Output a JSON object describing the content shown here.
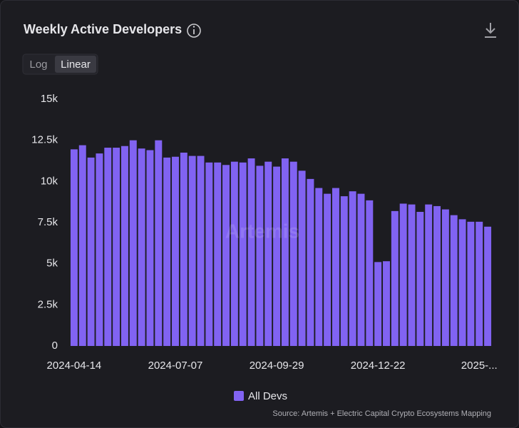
{
  "chart_data": {
    "type": "bar",
    "title": "Weekly Active Developers",
    "scale_options": [
      "Log",
      "Linear"
    ],
    "log_scale": false,
    "watermark": "Artemis",
    "source": "Source: Artemis + Electric Capital Crypto Ecosystems Mapping",
    "categories": [
      "2024-04-14",
      null,
      null,
      null,
      null,
      null,
      null,
      null,
      null,
      null,
      null,
      null,
      "2024-07-07",
      null,
      null,
      null,
      null,
      null,
      null,
      null,
      null,
      null,
      null,
      null,
      "2024-09-29",
      null,
      null,
      null,
      null,
      null,
      null,
      null,
      null,
      null,
      null,
      null,
      "2024-12-22",
      null,
      null,
      null,
      null,
      null,
      null,
      null,
      null,
      null,
      null,
      null,
      "2025-...",
      null
    ],
    "series": [
      {
        "name": "All Devs",
        "color": "#8163f2",
        "values": [
          11950,
          12200,
          11450,
          11700,
          12050,
          12050,
          12150,
          12500,
          12000,
          11900,
          12500,
          11450,
          11500,
          11750,
          11550,
          11550,
          11150,
          11150,
          11000,
          11200,
          11150,
          11400,
          10950,
          11200,
          10900,
          11400,
          11200,
          10650,
          10150,
          9600,
          9250,
          9600,
          9100,
          9400,
          9250,
          8850,
          5100,
          5150,
          8200,
          8650,
          8600,
          8150,
          8600,
          8500,
          8300,
          7950,
          7700,
          7550,
          7550,
          7250
        ]
      }
    ],
    "ylim": [
      0,
      15000
    ],
    "yticks": [
      0,
      {
        "value": 2500,
        "label": "2.5k"
      },
      {
        "value": 5000,
        "label": "5k"
      },
      {
        "value": 7500,
        "label": "7.5k"
      },
      {
        "value": 10000,
        "label": "10k"
      },
      {
        "value": 12500,
        "label": "12.5k"
      },
      {
        "value": 15000,
        "label": "15k"
      }
    ],
    "grid": false
  }
}
